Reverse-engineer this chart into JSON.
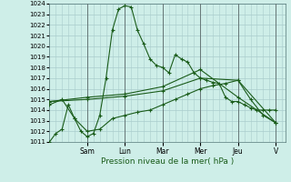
{
  "xlabel": "Pression niveau de la mer( hPa )",
  "bg_color": "#ceeee8",
  "grid_color": "#aacccc",
  "line_color": "#1a5c1a",
  "ylim": [
    1011,
    1024
  ],
  "yticks": [
    1011,
    1012,
    1013,
    1014,
    1015,
    1016,
    1017,
    1018,
    1019,
    1020,
    1021,
    1022,
    1023,
    1024
  ],
  "day_labels": [
    "Sam",
    "Lun",
    "Mar",
    "Mer",
    "Jeu",
    "V"
  ],
  "day_tick_positions": [
    48,
    96,
    144,
    192,
    240,
    288
  ],
  "day_vline_positions": [
    48,
    96,
    144,
    192,
    240,
    288
  ],
  "xlim": [
    0,
    300
  ],
  "series": [
    {
      "x": [
        0,
        8,
        16,
        24,
        32,
        40,
        48,
        56,
        64,
        72,
        80,
        88,
        96,
        104,
        112,
        120,
        128,
        136,
        144,
        152,
        160,
        168,
        176,
        184,
        192,
        200,
        208,
        216,
        224,
        232,
        240,
        248,
        256,
        264,
        272,
        280,
        288
      ],
      "y": [
        1011,
        1011.8,
        1012.2,
        1014.5,
        1013.2,
        1012.0,
        1011.5,
        1011.8,
        1013.5,
        1017.0,
        1021.5,
        1023.5,
        1023.8,
        1023.7,
        1021.5,
        1020.2,
        1018.8,
        1018.2,
        1018.0,
        1017.5,
        1019.2,
        1018.8,
        1018.5,
        1017.5,
        1017.0,
        1016.8,
        1016.6,
        1016.5,
        1015.2,
        1014.8,
        1014.8,
        1014.5,
        1014.2,
        1014.0,
        1014.0,
        1014.0,
        1014.0
      ]
    },
    {
      "x": [
        0,
        16,
        32,
        48,
        64,
        80,
        96,
        112,
        128,
        144,
        160,
        176,
        192,
        208,
        224,
        240,
        256,
        272,
        288
      ],
      "y": [
        1014.5,
        1015.0,
        1013.2,
        1012.0,
        1012.2,
        1013.2,
        1013.5,
        1013.8,
        1014.0,
        1014.5,
        1015.0,
        1015.5,
        1016.0,
        1016.3,
        1016.5,
        1016.8,
        1015.0,
        1013.5,
        1012.8
      ]
    },
    {
      "x": [
        0,
        48,
        96,
        144,
        192,
        240,
        288
      ],
      "y": [
        1014.8,
        1015.0,
        1015.3,
        1015.8,
        1017.0,
        1016.8,
        1012.8
      ]
    },
    {
      "x": [
        0,
        48,
        96,
        144,
        192,
        240,
        288
      ],
      "y": [
        1014.8,
        1015.2,
        1015.5,
        1016.2,
        1017.8,
        1015.2,
        1012.8
      ]
    }
  ]
}
